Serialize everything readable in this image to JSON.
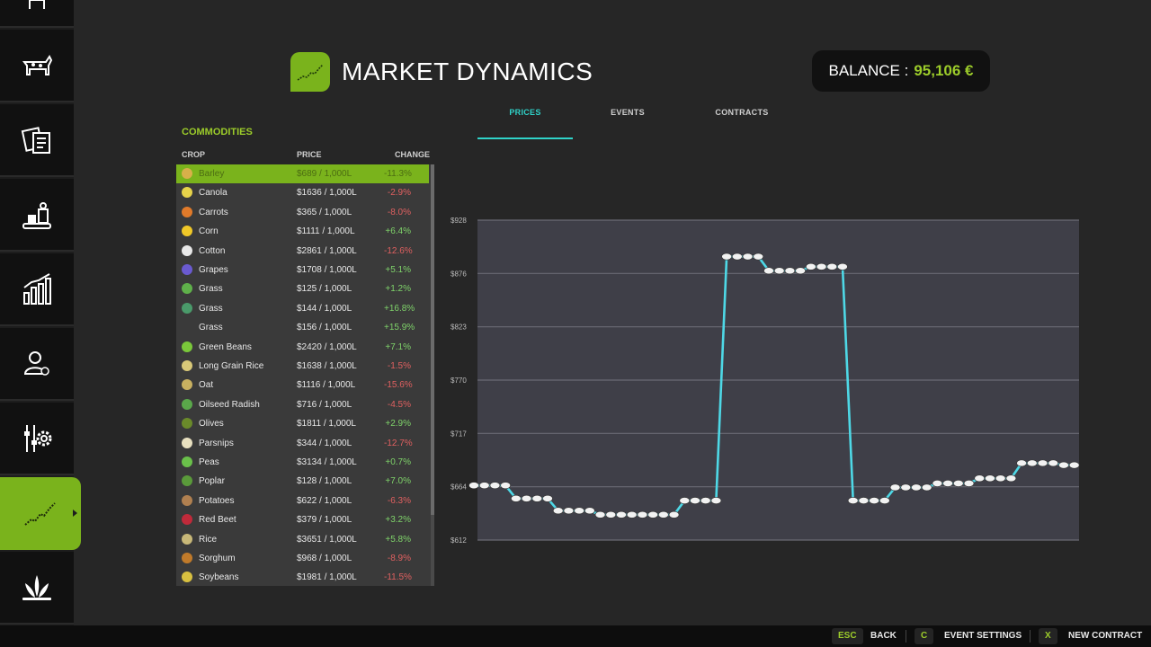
{
  "header": {
    "title": "MARKET DYNAMICS",
    "balance_label": "BALANCE :",
    "balance_value": "95,106 €"
  },
  "tabs": [
    {
      "label": "PRICES",
      "active": true
    },
    {
      "label": "EVENTS",
      "active": false
    },
    {
      "label": "CONTRACTS",
      "active": false
    }
  ],
  "commodities": {
    "title": "COMMODITIES",
    "columns": {
      "crop": "CROP",
      "price": "PRICE",
      "change": "CHANGE"
    },
    "rows": [
      {
        "name": "Barley",
        "price": "$689 / 1,000L",
        "change": "-11.3%",
        "selected": true,
        "icon": "barley-icon",
        "color": "#d8b04a"
      },
      {
        "name": "Canola",
        "price": "$1636 / 1,000L",
        "change": "-2.9%",
        "icon": "canola-icon",
        "color": "#e6d24a"
      },
      {
        "name": "Carrots",
        "price": "$365 / 1,000L",
        "change": "-8.0%",
        "icon": "carrot-icon",
        "color": "#e07a2a"
      },
      {
        "name": "Corn",
        "price": "$1111 / 1,000L",
        "change": "+6.4%",
        "icon": "corn-icon",
        "color": "#f0c828"
      },
      {
        "name": "Cotton",
        "price": "$2861 / 1,000L",
        "change": "-12.6%",
        "icon": "cotton-icon",
        "color": "#e8e8e8"
      },
      {
        "name": "Grapes",
        "price": "$1708 / 1,000L",
        "change": "+5.1%",
        "icon": "grapes-icon",
        "color": "#6a5ad0"
      },
      {
        "name": "Grass",
        "price": "$125 / 1,000L",
        "change": "+1.2%",
        "icon": "grass-icon",
        "color": "#5fb04a"
      },
      {
        "name": "Grass",
        "price": "$144 / 1,000L",
        "change": "+16.8%",
        "icon": "grass-bale-icon",
        "color": "#4a9a6a"
      },
      {
        "name": "Grass",
        "price": "$156 / 1,000L",
        "change": "+15.9%",
        "icon": "",
        "color": ""
      },
      {
        "name": "Green Beans",
        "price": "$2420 / 1,000L",
        "change": "+7.1%",
        "icon": "green-beans-icon",
        "color": "#7ac83a"
      },
      {
        "name": "Long Grain Rice",
        "price": "$1638 / 1,000L",
        "change": "-1.5%",
        "icon": "rice-icon",
        "color": "#d8c878"
      },
      {
        "name": "Oat",
        "price": "$1116 / 1,000L",
        "change": "-15.6%",
        "icon": "oat-icon",
        "color": "#c8b060"
      },
      {
        "name": "Oilseed Radish",
        "price": "$716 / 1,000L",
        "change": "-4.5%",
        "icon": "oilseed-radish-icon",
        "color": "#5aa84a"
      },
      {
        "name": "Olives",
        "price": "$1811 / 1,000L",
        "change": "+2.9%",
        "icon": "olives-icon",
        "color": "#6a8a2a"
      },
      {
        "name": "Parsnips",
        "price": "$344 / 1,000L",
        "change": "-12.7%",
        "icon": "parsnip-icon",
        "color": "#e8e0c0"
      },
      {
        "name": "Peas",
        "price": "$3134 / 1,000L",
        "change": "+0.7%",
        "icon": "peas-icon",
        "color": "#6ac04a"
      },
      {
        "name": "Poplar",
        "price": "$128 / 1,000L",
        "change": "+7.0%",
        "icon": "poplar-icon",
        "color": "#5a9a3a"
      },
      {
        "name": "Potatoes",
        "price": "$622 / 1,000L",
        "change": "-6.3%",
        "icon": "potato-icon",
        "color": "#b08050"
      },
      {
        "name": "Red Beet",
        "price": "$379 / 1,000L",
        "change": "+3.2%",
        "icon": "red-beet-icon",
        "color": "#c02a3a"
      },
      {
        "name": "Rice",
        "price": "$3651 / 1,000L",
        "change": "+5.8%",
        "icon": "rice-plant-icon",
        "color": "#c8b878"
      },
      {
        "name": "Sorghum",
        "price": "$968 / 1,000L",
        "change": "-8.9%",
        "icon": "sorghum-icon",
        "color": "#c07a2a"
      },
      {
        "name": "Soybeans",
        "price": "$1981 / 1,000L",
        "change": "-11.5%",
        "icon": "soybeans-icon",
        "color": "#d8c040"
      }
    ]
  },
  "sidebar": {
    "items": [
      {
        "icon": "calendar-icon",
        "active": false
      },
      {
        "icon": "livestock-icon",
        "active": false
      },
      {
        "icon": "contracts-icon",
        "active": false
      },
      {
        "icon": "production-icon",
        "active": false
      },
      {
        "icon": "statistics-icon",
        "active": false
      },
      {
        "icon": "finance-person-icon",
        "active": false
      },
      {
        "icon": "settings-icon",
        "active": false
      },
      {
        "icon": "market-dynamics-icon",
        "active": true
      },
      {
        "icon": "crops-icon",
        "active": false
      }
    ]
  },
  "chart_data": {
    "type": "line",
    "series": [
      {
        "values": [
          666,
          666,
          666,
          666,
          653,
          653,
          653,
          653,
          641,
          641,
          641,
          641,
          637,
          637,
          637,
          637,
          637,
          637,
          637,
          637,
          651,
          651,
          651,
          651,
          892,
          892,
          892,
          892,
          878,
          878,
          878,
          878,
          882,
          882,
          882,
          882,
          651,
          651,
          651,
          651,
          664,
          664,
          664,
          664,
          668,
          668,
          668,
          668,
          673,
          673,
          673,
          673,
          688,
          688,
          688,
          688,
          686,
          686
        ]
      }
    ],
    "yticks": [
      "$928",
      "$876",
      "$823",
      "$770",
      "$717",
      "$664",
      "$612"
    ],
    "ylim": [
      612,
      928
    ],
    "grid": true,
    "colors": {
      "line": "#4ed8e6",
      "plot_bg": "#3f3f48",
      "gridline": "#6a6a74",
      "marker": "#f2f2f2"
    }
  },
  "footer": {
    "actions": [
      {
        "key": "ESC",
        "label": "BACK"
      },
      {
        "key": "C",
        "label": "EVENT SETTINGS"
      },
      {
        "key": "X",
        "label": "NEW CONTRACT"
      }
    ]
  }
}
